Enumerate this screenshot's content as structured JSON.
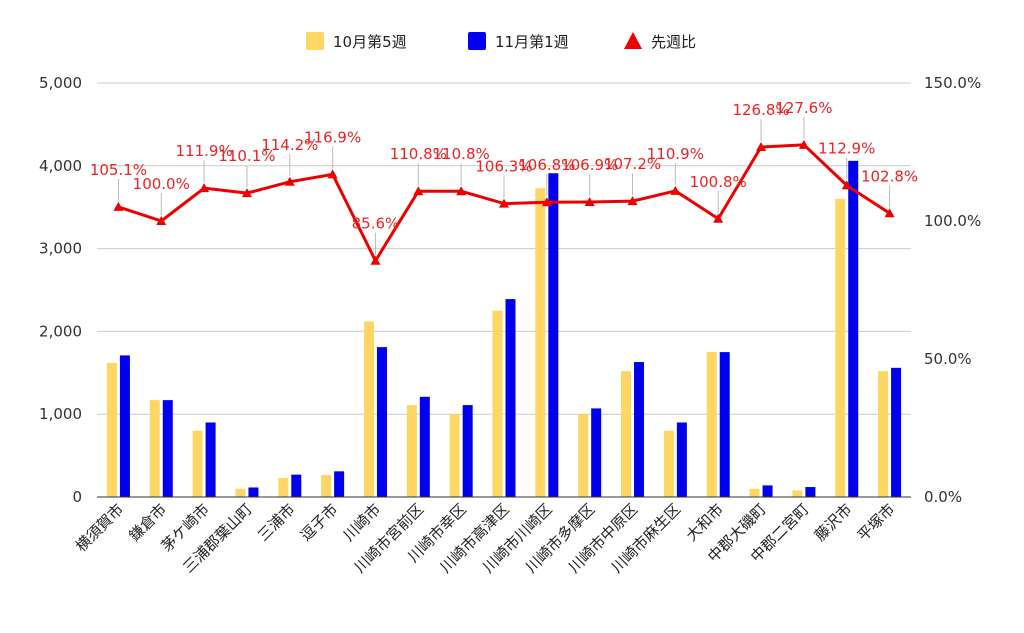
{
  "chart_data": {
    "type": "bar",
    "title": "",
    "xlabel": "",
    "ylabel": "",
    "ylim": [
      0,
      5000
    ],
    "y2lim": [
      0,
      150
    ],
    "y_ticks": [
      "0",
      "1,000",
      "2,000",
      "3,000",
      "4,000",
      "5,000"
    ],
    "y2_ticks": [
      "0.0%",
      "50.0%",
      "100.0%",
      "150.0%"
    ],
    "legend_position": "top",
    "grid": true,
    "categories": [
      "横須賀市",
      "鎌倉市",
      "茅ケ崎市",
      "三浦郡葉山町",
      "三浦市",
      "逗子市",
      "川崎市",
      "川崎市宮前区",
      "川崎市幸区",
      "川崎市高津区",
      "川崎市川崎区",
      "川崎市多摩区",
      "川崎市中原区",
      "川崎市麻生区",
      "大和市",
      "中郡大磯町",
      "中郡二宮町",
      "藤沢市",
      "平塚市"
    ],
    "series": [
      {
        "name": "10月第5週",
        "type": "bar",
        "axis": "left",
        "color": "#fdd663",
        "values": [
          1620,
          1170,
          800,
          100,
          230,
          265,
          2120,
          1110,
          1000,
          2250,
          3730,
          1000,
          1520,
          800,
          1750,
          100,
          80,
          3600,
          1520
        ]
      },
      {
        "name": "11月第1週",
        "type": "bar",
        "axis": "left",
        "color": "#0000ee",
        "values": [
          1710,
          1170,
          900,
          115,
          270,
          310,
          1810,
          1210,
          1110,
          2390,
          3910,
          1070,
          1630,
          900,
          1750,
          140,
          120,
          4060,
          1560
        ]
      },
      {
        "name": "先週比",
        "type": "line",
        "axis": "right",
        "color": "#ee0000",
        "values": [
          105.1,
          100.0,
          111.9,
          110.1,
          114.2,
          116.9,
          85.6,
          110.8,
          110.8,
          106.3,
          106.8,
          106.9,
          107.2,
          110.9,
          100.8,
          126.8,
          127.6,
          112.9,
          102.8
        ],
        "labels": [
          "105.1%",
          "100.0%",
          "111.9%",
          "110.1%",
          "114.2%",
          "116.9%",
          "85.6%",
          "110.8%",
          "110.8%",
          "106.3%",
          "106.8%",
          "106.9%",
          "107.2%",
          "110.9%",
          "100.8%",
          "126.8%",
          "127.6%",
          "112.9%",
          "102.8%"
        ]
      }
    ]
  }
}
